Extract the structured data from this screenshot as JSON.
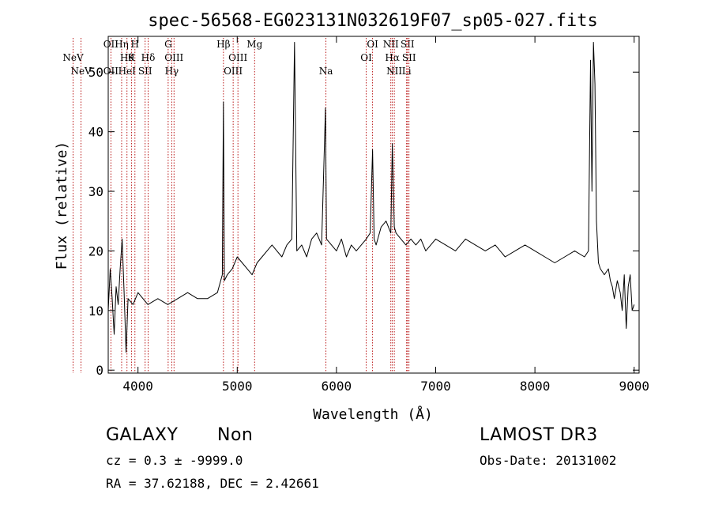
{
  "chart_data": {
    "type": "line",
    "title": "spec-56568-EG023131N032619F07_sp05-027.fits",
    "xlabel": "Wavelength (Å)",
    "ylabel": "Flux (relative)",
    "xlim": [
      3700,
      9050
    ],
    "ylim": [
      -0.5,
      56
    ],
    "x_ticks": [
      4000,
      5000,
      6000,
      7000,
      8000,
      9000
    ],
    "y_ticks": [
      0,
      10,
      20,
      30,
      40,
      50
    ],
    "grid": false,
    "series": [
      {
        "x": [
          3700,
          3720,
          3740,
          3760,
          3780,
          3800,
          3820,
          3840,
          3860,
          3880,
          3900,
          3950,
          4000,
          4100,
          4200,
          4300,
          4400,
          4500,
          4600,
          4700,
          4800,
          4850,
          4861,
          4870,
          4900,
          4950,
          5000,
          5050,
          5100,
          5150,
          5200,
          5250,
          5300,
          5350,
          5400,
          5450,
          5500,
          5550,
          5577,
          5600,
          5650,
          5700,
          5750,
          5800,
          5850,
          5889,
          5900,
          5950,
          6000,
          6050,
          6100,
          6150,
          6200,
          6250,
          6300,
          6340,
          6364,
          6380,
          6400,
          6450,
          6500,
          6548,
          6563,
          6583,
          6600,
          6650,
          6700,
          6750,
          6800,
          6850,
          6900,
          6950,
          7000,
          7100,
          7200,
          7300,
          7400,
          7500,
          7600,
          7700,
          7800,
          7900,
          8000,
          8100,
          8200,
          8300,
          8400,
          8500,
          8540,
          8560,
          8575,
          8590,
          8605,
          8620,
          8640,
          8660,
          8700,
          8740,
          8760,
          8780,
          8800,
          8830,
          8860,
          8880,
          8900,
          8920,
          8940,
          8960,
          8980,
          9000
        ],
        "y": [
          10,
          17,
          12,
          6,
          14,
          11,
          17,
          22,
          13,
          3,
          12,
          11,
          13,
          11,
          12,
          11,
          12,
          13,
          12,
          12,
          13,
          16,
          45,
          15,
          16,
          17,
          19,
          18,
          17,
          16,
          18,
          19,
          20,
          21,
          20,
          19,
          21,
          22,
          55,
          20,
          21,
          19,
          22,
          23,
          21,
          44,
          22,
          21,
          20,
          22,
          19,
          21,
          20,
          21,
          22,
          23,
          37,
          22,
          21,
          24,
          25,
          23,
          38,
          24,
          23,
          22,
          21,
          22,
          21,
          22,
          20,
          21,
          22,
          21,
          20,
          22,
          21,
          20,
          21,
          19,
          20,
          21,
          20,
          19,
          18,
          19,
          20,
          19,
          20,
          52,
          30,
          55,
          48,
          25,
          18,
          17,
          16,
          17,
          15,
          14,
          12,
          15,
          13,
          10,
          16,
          7,
          14,
          16,
          10,
          11
        ]
      }
    ],
    "line_markers": [
      {
        "x": 3426,
        "label": "NeV",
        "row": 3
      },
      {
        "x": 3346,
        "label": "NeV",
        "row": 2
      },
      {
        "x": 3727,
        "label": "OII",
        "row": 3
      },
      {
        "x": 3727,
        "label": "OII",
        "row": 1
      },
      {
        "x": 3835,
        "label": "Hη",
        "row": 1
      },
      {
        "x": 3889,
        "label": "Hθ",
        "row": 2
      },
      {
        "x": 3889,
        "label": "HeI",
        "row": 3
      },
      {
        "x": 3934,
        "label": "K",
        "row": 2
      },
      {
        "x": 3969,
        "label": "H",
        "row": 1
      },
      {
        "x": 4102,
        "label": "Hδ",
        "row": 2
      },
      {
        "x": 4072,
        "label": "SII",
        "row": 3
      },
      {
        "x": 4304,
        "label": "G",
        "row": 1
      },
      {
        "x": 4340,
        "label": "Hγ",
        "row": 3
      },
      {
        "x": 4363,
        "label": "OIII",
        "row": 2
      },
      {
        "x": 4861,
        "label": "Hβ",
        "row": 1
      },
      {
        "x": 4959,
        "label": "OIII",
        "row": 3
      },
      {
        "x": 5007,
        "label": "OIII",
        "row": 2
      },
      {
        "x": 5175,
        "label": "Mg",
        "row": 1
      },
      {
        "x": 5894,
        "label": "Na",
        "row": 3
      },
      {
        "x": 6300,
        "label": "OI",
        "row": 2
      },
      {
        "x": 6364,
        "label": "OI",
        "row": 1
      },
      {
        "x": 6548,
        "label": "NII",
        "row": 1
      },
      {
        "x": 6563,
        "label": "Hα",
        "row": 2
      },
      {
        "x": 6583,
        "label": "NII",
        "row": 3
      },
      {
        "x": 6707,
        "label": "Li",
        "row": 3
      },
      {
        "x": 6716,
        "label": "SII",
        "row": 1
      },
      {
        "x": 6731,
        "label": "SII",
        "row": 2
      }
    ]
  },
  "info": {
    "class": "GALAXY",
    "subclass": "Non",
    "survey": "LAMOST DR3",
    "cz": "cz = 0.3 ± -9999.0",
    "obs_date": "Obs-Date: 20131002",
    "coords": "RA =  37.62188, DEC =   2.42661"
  }
}
